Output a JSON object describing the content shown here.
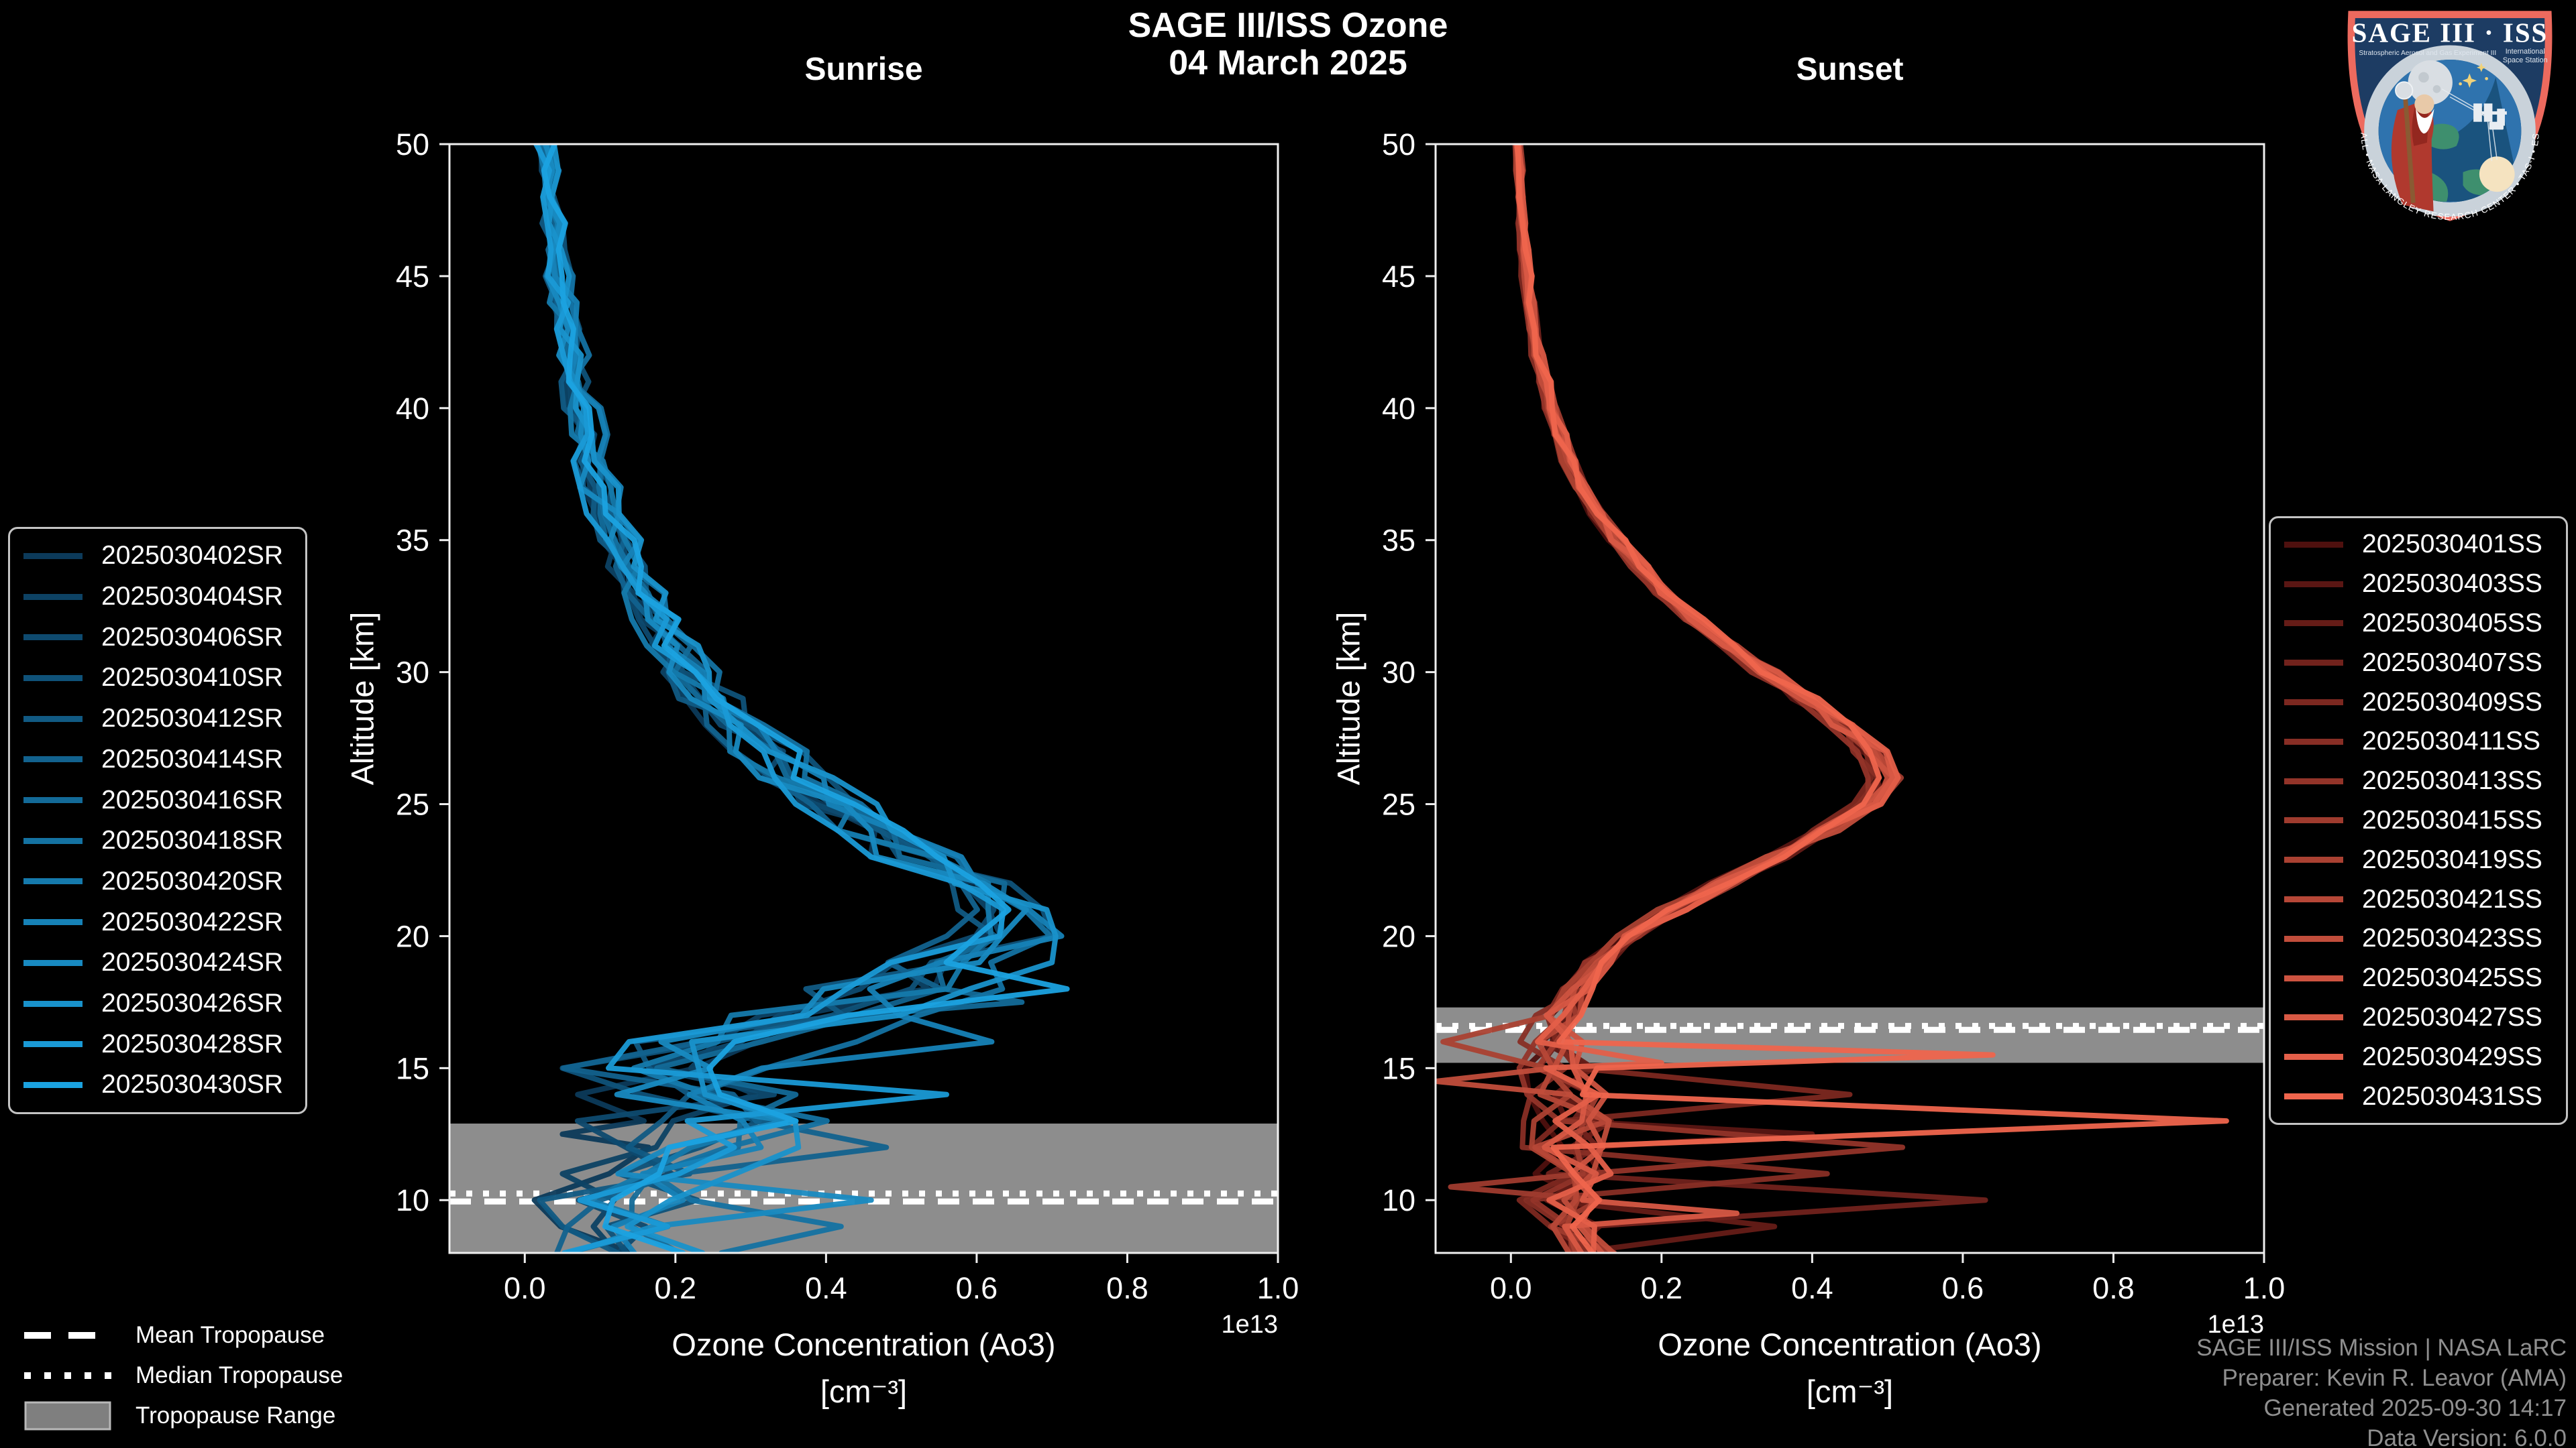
{
  "header": {
    "title_line1": "SAGE III/ISS Ozone",
    "title_line2": "04 March 2025"
  },
  "axis": {
    "ylabel": "Altitude [km]",
    "xlabel_line1": "Ozone Concentration (Ao3)",
    "xlabel_line2": "[cm⁻³]",
    "offset_label": "1e13"
  },
  "legend_tropopause": {
    "mean": "Mean Tropopause",
    "median": "Median Tropopause",
    "range": "Tropopause Range"
  },
  "attribution": {
    "line1": "SAGE III/ISS Mission | NASA LaRC",
    "line2": "Preparer: Kevin R. Leavor (AMA)",
    "line3": "Generated 2025-09-30 14:17",
    "line4": "Data Version: 6.0.0"
  },
  "logo": {
    "title": "SAGE III · ISS",
    "subtitle_left": "Stratospheric Aerosol and Gas Experiment III",
    "subtitle_right_1": "International",
    "subtitle_right_2": "Space Station",
    "ring_text": "BALL • NASA LANGLEY RESEARCH CENTER • TAS-I • ESA"
  },
  "colors": {
    "background": "#000000",
    "axis": "#efefef",
    "tick_label": "#ffffff",
    "tropopause_band": "#8d8d8d",
    "tropopause_line": "#ffffff",
    "legend_border": "#c4c4c4",
    "attribution_text": "#8f8f8f",
    "blue_start": "#0c3a5a",
    "blue_end": "#1ba2e0",
    "red_start": "#4e100e",
    "red_end": "#ef654d",
    "logo_border": "#ed6a5e",
    "logo_field": "#1d3c63",
    "logo_ring": "#c9d2da"
  },
  "chart_data": [
    {
      "type": "line",
      "title": "Sunrise",
      "xlabel": "Ozone Concentration (Ao3) [cm⁻³]",
      "ylabel": "Altitude [km]",
      "xlim": [
        -0.1,
        1.0
      ],
      "ylim": [
        8,
        50
      ],
      "x_unit_multiplier": "1e13",
      "grid": false,
      "legend_position": "outside-left",
      "x_ticks": {
        "values": [
          0.0,
          0.2,
          0.4,
          0.6,
          0.8,
          1.0
        ],
        "labels": [
          "0.0",
          "0.2",
          "0.4",
          "0.6",
          "0.8",
          "1.0"
        ]
      },
      "y_ticks": {
        "values": [
          10,
          15,
          20,
          25,
          30,
          35,
          40,
          45,
          50
        ],
        "labels": [
          "10",
          "15",
          "20",
          "25",
          "30",
          "35",
          "40",
          "45",
          "50"
        ]
      },
      "series": [
        "2025030402SR",
        "2025030404SR",
        "2025030406SR",
        "2025030410SR",
        "2025030412SR",
        "2025030414SR",
        "2025030416SR",
        "2025030418SR",
        "2025030420SR",
        "2025030422SR",
        "2025030424SR",
        "2025030426SR",
        "2025030428SR",
        "2025030430SR"
      ],
      "color_start": "#0c3a5a",
      "color_end": "#1ba2e0",
      "base_profile": [
        [
          50,
          0.03
        ],
        [
          49,
          0.033
        ],
        [
          48,
          0.036
        ],
        [
          47,
          0.04
        ],
        [
          46,
          0.044
        ],
        [
          45,
          0.048
        ],
        [
          44,
          0.053
        ],
        [
          43,
          0.058
        ],
        [
          42,
          0.064
        ],
        [
          41,
          0.07
        ],
        [
          40,
          0.077
        ],
        [
          39,
          0.085
        ],
        [
          38,
          0.094
        ],
        [
          37,
          0.104
        ],
        [
          36,
          0.115
        ],
        [
          35,
          0.128
        ],
        [
          34,
          0.143
        ],
        [
          33,
          0.16
        ],
        [
          32,
          0.18
        ],
        [
          31,
          0.202
        ],
        [
          30,
          0.228
        ],
        [
          29,
          0.257
        ],
        [
          28,
          0.29
        ],
        [
          27,
          0.328
        ],
        [
          26,
          0.37
        ],
        [
          25,
          0.418
        ],
        [
          24,
          0.47
        ],
        [
          23,
          0.528
        ],
        [
          22,
          0.59
        ],
        [
          21,
          0.648
        ],
        [
          20,
          0.636
        ],
        [
          19,
          0.58
        ],
        [
          18,
          0.515
        ],
        [
          17,
          0.4
        ],
        [
          16,
          0.285
        ],
        [
          15,
          0.225
        ],
        [
          14,
          0.255
        ],
        [
          13,
          0.3
        ],
        [
          12,
          0.258
        ],
        [
          11,
          0.185
        ],
        [
          10,
          0.148
        ],
        [
          9,
          0.165
        ],
        [
          8,
          0.15
        ]
      ],
      "jitter_amps": [
        [
          50,
          0.012
        ],
        [
          42,
          0.018
        ],
        [
          35,
          0.028
        ],
        [
          30,
          0.038
        ],
        [
          26,
          0.05
        ],
        [
          23,
          0.055
        ],
        [
          21,
          0.06
        ],
        [
          20,
          0.075
        ],
        [
          19,
          0.095
        ],
        [
          18,
          0.11
        ],
        [
          16,
          0.13
        ],
        [
          14,
          0.14
        ],
        [
          12,
          0.12
        ],
        [
          10,
          0.1
        ],
        [
          8,
          0.09
        ]
      ],
      "spikes": [
        [
          13,
          18,
          0.72
        ],
        [
          11,
          19,
          0.7
        ],
        [
          9,
          16,
          0.62
        ],
        [
          12,
          14,
          0.56
        ],
        [
          5,
          12,
          0.48
        ],
        [
          7,
          9,
          0.42
        ],
        [
          10,
          10,
          0.46
        ],
        [
          3,
          15,
          0.05
        ],
        [
          1,
          11,
          0.05
        ],
        [
          2,
          13,
          0.07
        ],
        [
          6,
          17.5,
          0.66
        ],
        [
          0,
          12.5,
          0.05
        ]
      ],
      "tropopause": {
        "mean": 9.95,
        "median": 10.25,
        "range": [
          8.0,
          12.9
        ]
      }
    },
    {
      "type": "line",
      "title": "Sunset",
      "xlabel": "Ozone Concentration (Ao3) [cm⁻³]",
      "ylabel": "Altitude [km]",
      "xlim": [
        -0.1,
        1.0
      ],
      "ylim": [
        8,
        50
      ],
      "x_unit_multiplier": "1e13",
      "grid": false,
      "legend_position": "outside-right",
      "x_ticks": {
        "values": [
          0.0,
          0.2,
          0.4,
          0.6,
          0.8,
          1.0
        ],
        "labels": [
          "0.0",
          "0.2",
          "0.4",
          "0.6",
          "0.8",
          "1.0"
        ]
      },
      "y_ticks": {
        "values": [
          10,
          15,
          20,
          25,
          30,
          35,
          40,
          45,
          50
        ],
        "labels": [
          "10",
          "15",
          "20",
          "25",
          "30",
          "35",
          "40",
          "45",
          "50"
        ]
      },
      "series": [
        "2025030401SS",
        "2025030403SS",
        "2025030405SS",
        "2025030407SS",
        "2025030409SS",
        "2025030411SS",
        "2025030413SS",
        "2025030415SS",
        "2025030419SS",
        "2025030421SS",
        "2025030423SS",
        "2025030425SS",
        "2025030427SS",
        "2025030429SS",
        "2025030431SS"
      ],
      "color_start": "#4e100e",
      "color_end": "#ef654d",
      "base_profile": [
        [
          50,
          0.01
        ],
        [
          49,
          0.011
        ],
        [
          48,
          0.013
        ],
        [
          47,
          0.015
        ],
        [
          46,
          0.018
        ],
        [
          45,
          0.021
        ],
        [
          44,
          0.025
        ],
        [
          43,
          0.03
        ],
        [
          42,
          0.036
        ],
        [
          41,
          0.044
        ],
        [
          40,
          0.053
        ],
        [
          39,
          0.064
        ],
        [
          38,
          0.078
        ],
        [
          37,
          0.095
        ],
        [
          36,
          0.115
        ],
        [
          35,
          0.14
        ],
        [
          34,
          0.17
        ],
        [
          33,
          0.205
        ],
        [
          32,
          0.245
        ],
        [
          31,
          0.29
        ],
        [
          30,
          0.338
        ],
        [
          29,
          0.388
        ],
        [
          28,
          0.437
        ],
        [
          27,
          0.477
        ],
        [
          26,
          0.498
        ],
        [
          25,
          0.47
        ],
        [
          24,
          0.418
        ],
        [
          23,
          0.35
        ],
        [
          22,
          0.28
        ],
        [
          21,
          0.215
        ],
        [
          20,
          0.16
        ],
        [
          19,
          0.115
        ],
        [
          18,
          0.085
        ],
        [
          17,
          0.065
        ],
        [
          16,
          0.055
        ],
        [
          15,
          0.068
        ],
        [
          14,
          0.075
        ],
        [
          13,
          0.08
        ],
        [
          12,
          0.07
        ],
        [
          11,
          0.075
        ],
        [
          10,
          0.07
        ],
        [
          9,
          0.08
        ],
        [
          8,
          0.09
        ]
      ],
      "jitter_amps": [
        [
          50,
          0.005
        ],
        [
          42,
          0.008
        ],
        [
          35,
          0.012
        ],
        [
          30,
          0.018
        ],
        [
          26,
          0.022
        ],
        [
          22,
          0.02
        ],
        [
          19,
          0.02
        ],
        [
          17,
          0.03
        ],
        [
          16,
          0.04
        ],
        [
          15,
          0.05
        ],
        [
          13,
          0.055
        ],
        [
          11,
          0.055
        ],
        [
          8,
          0.05
        ]
      ],
      "spikes": [
        [
          14,
          15.5,
          0.64
        ],
        [
          14,
          13,
          0.95
        ],
        [
          4,
          14,
          0.45
        ],
        [
          6,
          12,
          0.52
        ],
        [
          3,
          10,
          0.63
        ],
        [
          5,
          11,
          0.42
        ],
        [
          2,
          9,
          0.35
        ],
        [
          12,
          9.5,
          0.3
        ],
        [
          1,
          12.5,
          0.4
        ],
        [
          8,
          16,
          -0.09
        ],
        [
          10,
          14.5,
          -0.1
        ],
        [
          7,
          10.5,
          -0.08
        ],
        [
          13,
          15.2,
          0.2
        ]
      ],
      "tropopause": {
        "mean": 16.45,
        "median": 16.6,
        "range": [
          15.2,
          17.3
        ]
      }
    }
  ]
}
